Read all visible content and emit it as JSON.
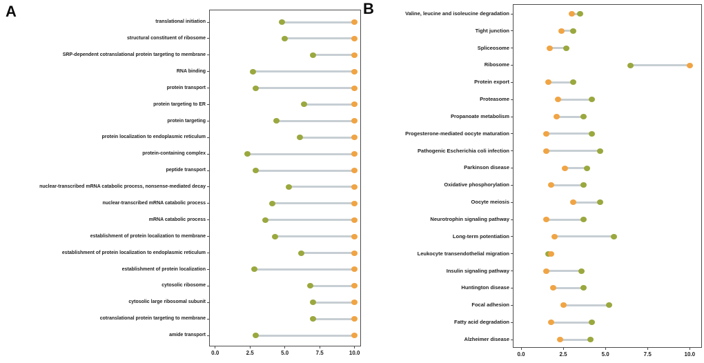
{
  "figure": {
    "background": "#ffffff"
  },
  "colors": {
    "green": "#9aa83e",
    "orange": "#f0a444",
    "connector": "#c6ced3",
    "panel_border": "#4a4a4a",
    "text": "#1c1c1c"
  },
  "chart_data": [
    {
      "type": "scatter",
      "subtype": "dumbbell",
      "panel_label": "A",
      "orientation": "horizontal",
      "xlim": [
        0,
        10
      ],
      "xticks": [
        "0.0",
        "2.5",
        "5.0",
        "7.5",
        "10.0"
      ],
      "xtick_values": [
        0,
        2.5,
        5,
        7.5,
        10
      ],
      "grid": false,
      "legend": "none",
      "categories": [
        "translational initiation",
        "structural constituent of ribosome",
        "SRP-dependent cotranslational protein targeting to membrane",
        "RNA binding",
        "protein transport",
        "protein targeting to ER",
        "protein targeting",
        "protein localization to endoplasmic reticulum",
        "protein-containing complex",
        "peptide transport",
        "nuclear-transcribed mRNA catabolic process, nonsense-mediated decay",
        "nuclear-transcribed mRNA catabolic process",
        "mRNA catabolic process",
        "establishment of protein localization to membrane",
        "establishment of protein localization to endoplasmic reticulum",
        "establishment of protein localization",
        "cytosolic ribosome",
        "cytosolic large ribosomal subunit",
        "cotranslational protein targeting to membrane",
        "amide transport"
      ],
      "series": [
        {
          "name": "series_green",
          "color": "#9aa83e",
          "values": [
            4.8,
            5.0,
            7.0,
            2.7,
            2.9,
            6.4,
            4.4,
            6.1,
            2.3,
            2.9,
            5.3,
            4.1,
            3.6,
            4.3,
            6.2,
            2.8,
            6.8,
            7.0,
            7.0,
            2.9
          ]
        },
        {
          "name": "series_orange",
          "color": "#f0a444",
          "values": [
            10,
            10,
            10,
            10,
            10,
            10,
            10,
            10,
            10,
            10,
            10,
            10,
            10,
            10,
            10,
            10,
            10,
            10,
            10,
            10
          ]
        }
      ]
    },
    {
      "type": "scatter",
      "subtype": "dumbbell",
      "panel_label": "B",
      "orientation": "horizontal",
      "xlim": [
        0,
        10
      ],
      "xticks": [
        "0.0",
        "2.5",
        "5.0",
        "7.5",
        "10.0"
      ],
      "xtick_values": [
        0,
        2.5,
        5,
        7.5,
        10
      ],
      "grid": false,
      "legend": "none",
      "categories": [
        "Valine, leucine and isoleucine degradation",
        "Tight junction",
        "Spliceosome",
        "Ribosome",
        "Protein export",
        "Proteasome",
        "Propanoate metabolism",
        "Progesterone-mediated oocyte maturation",
        "Pathogenic Escherichia coli infection",
        "Parkinson disease",
        "Oxidative phosphorylation",
        "Oocyte meiosis",
        "Neurotrophin signaling pathway",
        "Long-term potentiation",
        "Leukocyte transendothelial migration",
        "Insulin signaling pathway",
        "Huntington disease",
        "Focal adhesion",
        "Fatty acid degradation",
        "Alzheimer disease"
      ],
      "series": [
        {
          "name": "series_green",
          "color": "#9aa83e",
          "values": [
            3.5,
            3.1,
            2.7,
            6.5,
            3.1,
            4.2,
            3.7,
            4.2,
            4.7,
            3.9,
            3.7,
            4.7,
            3.7,
            5.5,
            1.6,
            3.6,
            3.7,
            5.2,
            4.2,
            4.1
          ]
        },
        {
          "name": "series_orange",
          "color": "#f0a444",
          "values": [
            3.0,
            2.4,
            1.7,
            10.0,
            1.6,
            2.2,
            2.1,
            1.5,
            1.5,
            2.6,
            1.8,
            3.1,
            1.5,
            2.0,
            1.8,
            1.5,
            1.9,
            2.5,
            1.8,
            2.3
          ]
        }
      ]
    }
  ]
}
